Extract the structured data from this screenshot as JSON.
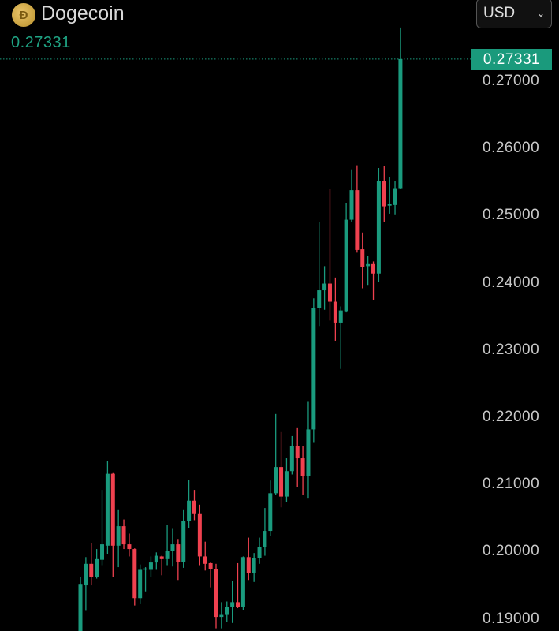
{
  "header": {
    "coin_name": "Dogecoin",
    "coin_icon": "dogecoin-logo-icon",
    "current_price": "0.27331",
    "currency": "USD"
  },
  "colors": {
    "up": "#1a9b7e",
    "down": "#f0414f",
    "background": "#000000"
  },
  "chart_data": {
    "type": "candlestick",
    "title": "",
    "xlabel": "",
    "ylabel": "",
    "ylim": [
      0.1882,
      0.2821
    ],
    "grid": false,
    "y_ticks": [
      "0.27000",
      "0.26000",
      "0.25000",
      "0.24000",
      "0.23000",
      "0.22000",
      "0.21000",
      "0.20000",
      "0.19000"
    ],
    "last_price_label": "0.27331",
    "last_price": 0.27331,
    "ohlc": [
      [
        0.1877,
        0.1963,
        0.1868,
        0.1951
      ],
      [
        0.195,
        0.1992,
        0.1912,
        0.1982
      ],
      [
        0.1982,
        0.2013,
        0.195,
        0.1963
      ],
      [
        0.1963,
        0.2004,
        0.196,
        0.1989
      ],
      [
        0.1988,
        0.2092,
        0.198,
        0.2011
      ],
      [
        0.2009,
        0.2135,
        0.1996,
        0.2116
      ],
      [
        0.2116,
        0.2117,
        0.1963,
        0.2009
      ],
      [
        0.2009,
        0.2063,
        0.1977,
        0.2038
      ],
      [
        0.2038,
        0.2048,
        0.2004,
        0.2011
      ],
      [
        0.2011,
        0.2027,
        0.1993,
        0.2004
      ],
      [
        0.2004,
        0.2005,
        0.192,
        0.1931
      ],
      [
        0.1931,
        0.1981,
        0.1922,
        0.1973
      ],
      [
        0.1974,
        0.1977,
        0.1941,
        0.1975
      ],
      [
        0.1973,
        0.1993,
        0.1963,
        0.1984
      ],
      [
        0.1984,
        0.1999,
        0.1973,
        0.1994
      ],
      [
        0.1993,
        0.1994,
        0.1965,
        0.1989
      ],
      [
        0.1989,
        0.204,
        0.198,
        0.2001
      ],
      [
        0.2001,
        0.2034,
        0.1978,
        0.2011
      ],
      [
        0.2011,
        0.2019,
        0.1958,
        0.1985
      ],
      [
        0.1985,
        0.2063,
        0.1976,
        0.2046
      ],
      [
        0.2046,
        0.2107,
        0.2035,
        0.2076
      ],
      [
        0.2076,
        0.2092,
        0.2047,
        0.2056
      ],
      [
        0.2056,
        0.207,
        0.198,
        0.1993
      ],
      [
        0.1993,
        0.2015,
        0.1972,
        0.1982
      ],
      [
        0.1983,
        0.1984,
        0.1947,
        0.1974
      ],
      [
        0.1974,
        0.1982,
        0.1886,
        0.1903
      ],
      [
        0.1903,
        0.1925,
        0.1886,
        0.1906
      ],
      [
        0.1906,
        0.1926,
        0.1896,
        0.1918
      ],
      [
        0.1918,
        0.1957,
        0.1894,
        0.1925
      ],
      [
        0.1925,
        0.1983,
        0.1916,
        0.1918
      ],
      [
        0.1918,
        0.1993,
        0.1913,
        0.1992
      ],
      [
        0.1992,
        0.2021,
        0.1958,
        0.1968
      ],
      [
        0.1968,
        0.1998,
        0.1955,
        0.199
      ],
      [
        0.199,
        0.2021,
        0.1982,
        0.2007
      ],
      [
        0.2007,
        0.2065,
        0.1994,
        0.2031
      ],
      [
        0.2031,
        0.2106,
        0.2023,
        0.2087
      ],
      [
        0.2087,
        0.2205,
        0.2085,
        0.2126
      ],
      [
        0.2126,
        0.2178,
        0.2066,
        0.2082
      ],
      [
        0.2082,
        0.2139,
        0.2074,
        0.212
      ],
      [
        0.212,
        0.2172,
        0.2115,
        0.2157
      ],
      [
        0.2157,
        0.2185,
        0.2096,
        0.2139
      ],
      [
        0.2139,
        0.2157,
        0.2084,
        0.2113
      ],
      [
        0.2113,
        0.2223,
        0.2079,
        0.2182
      ],
      [
        0.2182,
        0.2377,
        0.2162,
        0.2363
      ],
      [
        0.2363,
        0.249,
        0.2336,
        0.2389
      ],
      [
        0.2389,
        0.2425,
        0.236,
        0.2399
      ],
      [
        0.2399,
        0.254,
        0.2344,
        0.2372
      ],
      [
        0.2372,
        0.2408,
        0.2314,
        0.2341
      ],
      [
        0.2341,
        0.2365,
        0.2272,
        0.2359
      ],
      [
        0.2358,
        0.2519,
        0.2356,
        0.2494
      ],
      [
        0.2494,
        0.2569,
        0.249,
        0.2538
      ],
      [
        0.2538,
        0.2575,
        0.2445,
        0.2449
      ],
      [
        0.245,
        0.2475,
        0.2392,
        0.2424
      ],
      [
        0.2425,
        0.244,
        0.2397,
        0.2428
      ],
      [
        0.2428,
        0.2432,
        0.2375,
        0.2414
      ],
      [
        0.2414,
        0.2571,
        0.2401,
        0.2552
      ],
      [
        0.2552,
        0.2574,
        0.249,
        0.2514
      ],
      [
        0.2515,
        0.2557,
        0.2503,
        0.2517
      ],
      [
        0.2516,
        0.2552,
        0.2502,
        0.2541
      ],
      [
        0.2541,
        0.278,
        0.254,
        0.27331
      ]
    ]
  }
}
